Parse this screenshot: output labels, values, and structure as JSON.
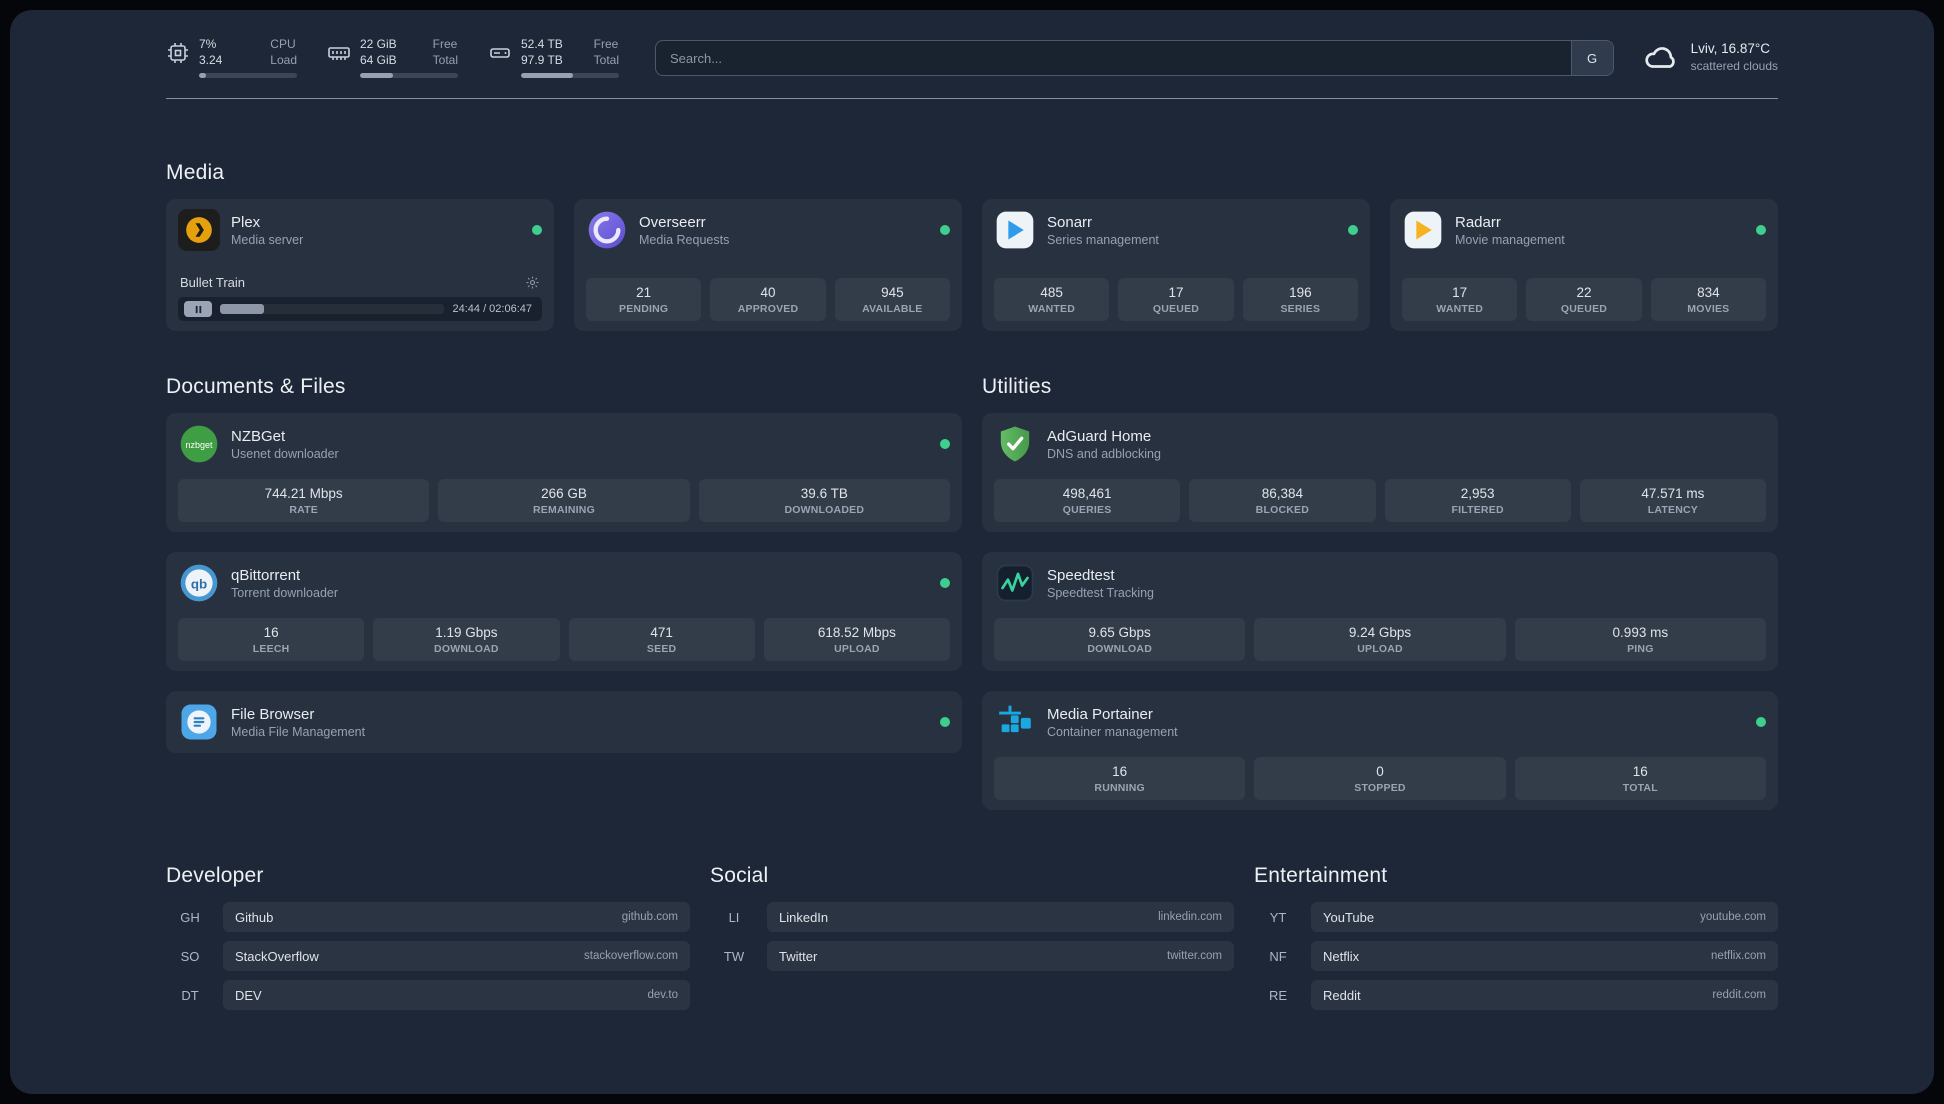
{
  "colors": {
    "background": "#1e2737",
    "card": "#28313f",
    "status_online": "#3ecf8e",
    "plex_brand": "#e5a00d",
    "sonarr_blue": "#2f9ceb",
    "radarr_amber": "#f5b321",
    "adguard_green": "#4a9e4f",
    "portainer_blue": "#1ba7e0"
  },
  "topbar": {
    "cpu": {
      "value_top": "7%",
      "value_bottom": "3.24",
      "label_top": "CPU",
      "label_bottom": "Load",
      "bar_percent": 7
    },
    "memory": {
      "value_top": "22 GiB",
      "value_bottom": "64 GiB",
      "label_top": "Free",
      "label_bottom": "Total",
      "bar_percent": 34
    },
    "disk": {
      "value_top": "52.4 TB",
      "value_bottom": "97.9 TB",
      "label_top": "Free",
      "label_bottom": "Total",
      "bar_percent": 53
    },
    "search": {
      "placeholder": "Search...",
      "provider_button": "G"
    },
    "weather": {
      "location": "Lviv, 16.87°C",
      "condition": "scattered clouds"
    }
  },
  "media": {
    "title": "Media",
    "cards": [
      {
        "icon": "plex",
        "title": "Plex",
        "subtitle": "Media server",
        "online": true,
        "player": {
          "track": "Bullet Train",
          "progress_percent": 19.5,
          "time": "24:44 / 02:06:47"
        }
      },
      {
        "icon": "overseerr",
        "title": "Overseerr",
        "subtitle": "Media Requests",
        "online": true,
        "stats": [
          {
            "value": "21",
            "label": "PENDING"
          },
          {
            "value": "40",
            "label": "APPROVED"
          },
          {
            "value": "945",
            "label": "AVAILABLE"
          }
        ]
      },
      {
        "icon": "sonarr",
        "title": "Sonarr",
        "subtitle": "Series management",
        "online": true,
        "stats": [
          {
            "value": "485",
            "label": "WANTED"
          },
          {
            "value": "17",
            "label": "QUEUED"
          },
          {
            "value": "196",
            "label": "SERIES"
          }
        ]
      },
      {
        "icon": "radarr",
        "title": "Radarr",
        "subtitle": "Movie management",
        "online": true,
        "stats": [
          {
            "value": "17",
            "label": "WANTED"
          },
          {
            "value": "22",
            "label": "QUEUED"
          },
          {
            "value": "834",
            "label": "MOVIES"
          }
        ]
      }
    ]
  },
  "documents": {
    "title": "Documents & Files",
    "cards": [
      {
        "icon": "nzbget",
        "title": "NZBGet",
        "subtitle": "Usenet downloader",
        "online": true,
        "stats": [
          {
            "value": "744.21 Mbps",
            "label": "RATE"
          },
          {
            "value": "266 GB",
            "label": "REMAINING"
          },
          {
            "value": "39.6 TB",
            "label": "DOWNLOADED"
          }
        ]
      },
      {
        "icon": "qbittorrent",
        "title": "qBittorrent",
        "subtitle": "Torrent downloader",
        "online": true,
        "stats": [
          {
            "value": "16",
            "label": "LEECH"
          },
          {
            "value": "1.19 Gbps",
            "label": "DOWNLOAD"
          },
          {
            "value": "471",
            "label": "SEED"
          },
          {
            "value": "618.52 Mbps",
            "label": "UPLOAD"
          }
        ]
      },
      {
        "icon": "filebrowser",
        "title": "File Browser",
        "subtitle": "Media File Management",
        "online": true,
        "stats": []
      }
    ]
  },
  "utilities": {
    "title": "Utilities",
    "cards": [
      {
        "icon": "adguard",
        "title": "AdGuard Home",
        "subtitle": "DNS and adblocking",
        "online": false,
        "stats": [
          {
            "value": "498,461",
            "label": "QUERIES"
          },
          {
            "value": "86,384",
            "label": "BLOCKED"
          },
          {
            "value": "2,953",
            "label": "FILTERED"
          },
          {
            "value": "47.571 ms",
            "label": "LATENCY"
          }
        ]
      },
      {
        "icon": "speedtest",
        "title": "Speedtest",
        "subtitle": "Speedtest Tracking",
        "online": false,
        "stats": [
          {
            "value": "9.65 Gbps",
            "label": "DOWNLOAD"
          },
          {
            "value": "9.24 Gbps",
            "label": "UPLOAD"
          },
          {
            "value": "0.993 ms",
            "label": "PING"
          }
        ]
      },
      {
        "icon": "portainer",
        "title": "Media Portainer",
        "subtitle": "Container management",
        "online": true,
        "stats": [
          {
            "value": "16",
            "label": "RUNNING"
          },
          {
            "value": "0",
            "label": "STOPPED"
          },
          {
            "value": "16",
            "label": "TOTAL"
          }
        ]
      }
    ]
  },
  "bookmarks": {
    "groups": [
      {
        "title": "Developer",
        "items": [
          {
            "abbr": "GH",
            "name": "Github",
            "url": "github.com"
          },
          {
            "abbr": "SO",
            "name": "StackOverflow",
            "url": "stackoverflow.com"
          },
          {
            "abbr": "DT",
            "name": "DEV",
            "url": "dev.to"
          }
        ]
      },
      {
        "title": "Social",
        "items": [
          {
            "abbr": "LI",
            "name": "LinkedIn",
            "url": "linkedin.com"
          },
          {
            "abbr": "TW",
            "name": "Twitter",
            "url": "twitter.com"
          }
        ]
      },
      {
        "title": "Entertainment",
        "items": [
          {
            "abbr": "YT",
            "name": "YouTube",
            "url": "youtube.com"
          },
          {
            "abbr": "NF",
            "name": "Netflix",
            "url": "netflix.com"
          },
          {
            "abbr": "RE",
            "name": "Reddit",
            "url": "reddit.com"
          }
        ]
      }
    ]
  }
}
